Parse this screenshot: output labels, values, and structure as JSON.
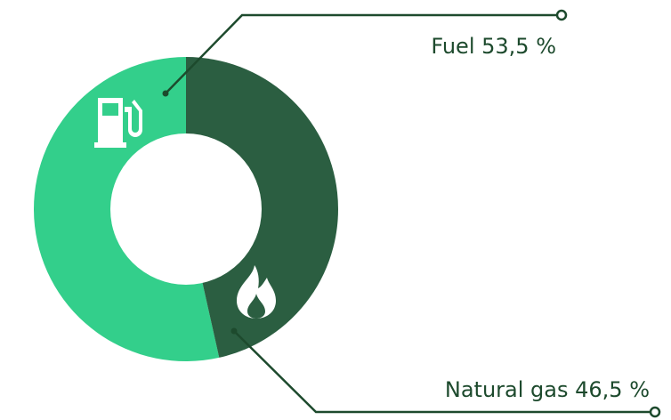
{
  "chart_data": {
    "type": "pie",
    "categories": [
      "Fuel",
      "Natural gas"
    ],
    "values": [
      53.5,
      46.5
    ],
    "value_labels": [
      "53,5 %",
      "46,5 %"
    ],
    "colors": [
      "#33cf8b",
      "#2b5e41"
    ]
  }
}
